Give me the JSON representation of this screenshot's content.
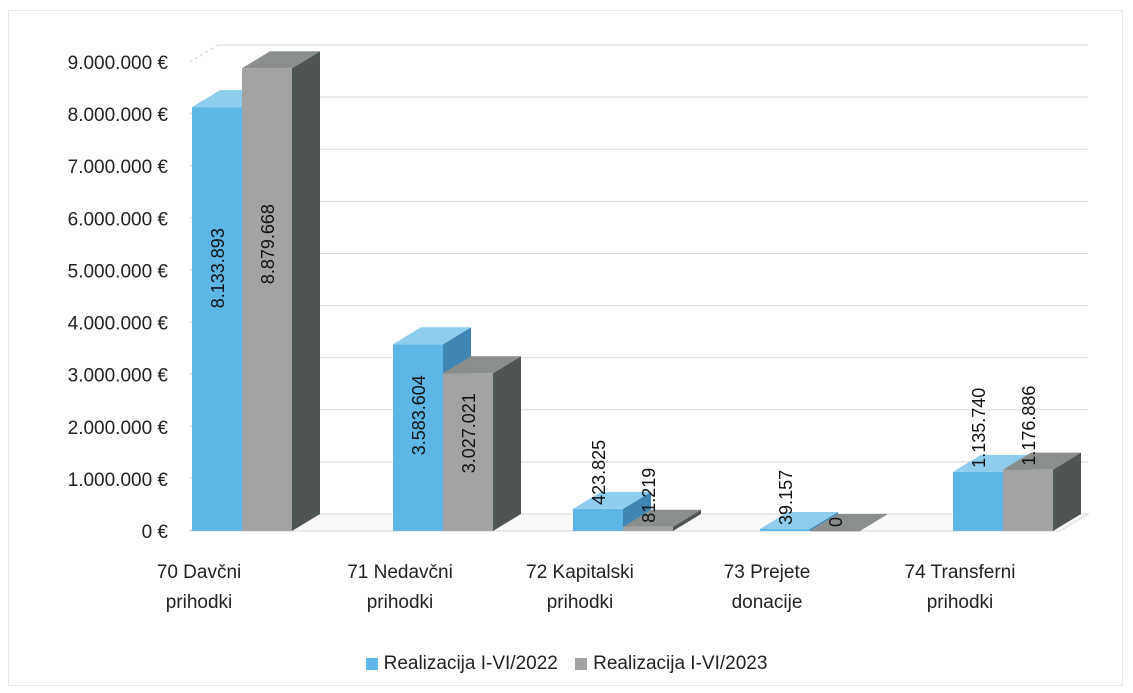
{
  "chart_data": {
    "type": "bar",
    "categories": [
      [
        "70 Davčni",
        "prihodki"
      ],
      [
        "71 Nedavčni",
        "prihodki"
      ],
      [
        "72 Kapitalski",
        "prihodki"
      ],
      [
        "73 Prejete",
        "donacije"
      ],
      [
        "74 Transferni",
        "prihodki"
      ]
    ],
    "series": [
      {
        "name": "Realizacija I-VI/2022",
        "values": [
          8133893,
          3583604,
          423825,
          39157,
          1135740
        ],
        "labels": [
          "8.133.893",
          "3.583.604",
          "423.825",
          "39.157",
          "1.135.740"
        ]
      },
      {
        "name": "Realizacija I-VI/2023",
        "values": [
          8879668,
          3027021,
          81219,
          0,
          1176886
        ],
        "labels": [
          "8.879.668",
          "3.027.021",
          "81.219",
          "0",
          "1.176.886"
        ]
      }
    ],
    "y_ticks": [
      "0 €",
      "1.000.000 €",
      "2.000.000 €",
      "3.000.000 €",
      "4.000.000 €",
      "5.000.000 €",
      "6.000.000 €",
      "7.000.000 €",
      "8.000.000 €",
      "9.000.000 €"
    ],
    "ylim": [
      0,
      9000000
    ],
    "grid": true,
    "legend_position": "bottom",
    "colors": {
      "s0_front": "#5eb6e6",
      "s0_side": "#3f86b5",
      "s0_top": "#8fcdef",
      "s1_front": "#a3a3a3",
      "s1_side": "#4f5552",
      "s1_top": "#8b8f8b"
    }
  }
}
